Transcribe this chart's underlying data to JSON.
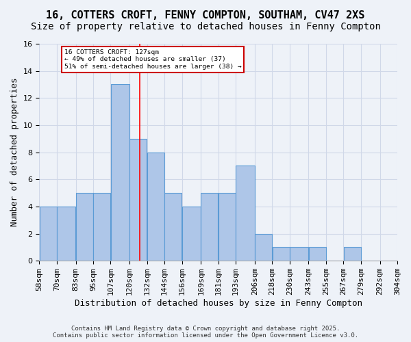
{
  "title_line1": "16, COTTERS CROFT, FENNY COMPTON, SOUTHAM, CV47 2XS",
  "title_line2": "Size of property relative to detached houses in Fenny Compton",
  "xlabel": "Distribution of detached houses by size in Fenny Compton",
  "ylabel": "Number of detached properties",
  "footer": "Contains HM Land Registry data © Crown copyright and database right 2025.\nContains public sector information licensed under the Open Government Licence v3.0.",
  "bin_labels": [
    "58sqm",
    "70sqm",
    "83sqm",
    "95sqm",
    "107sqm",
    "120sqm",
    "132sqm",
    "144sqm",
    "156sqm",
    "169sqm",
    "181sqm",
    "193sqm",
    "206sqm",
    "218sqm",
    "230sqm",
    "243sqm",
    "255sqm",
    "267sqm",
    "279sqm",
    "292sqm",
    "304sqm"
  ],
  "bar_values": [
    4,
    4,
    5,
    5,
    13,
    9,
    8,
    5,
    4,
    5,
    5,
    7,
    2,
    1,
    1,
    1,
    0,
    1,
    0,
    0
  ],
  "bar_color": "#aec6e8",
  "bar_edge_color": "#5b9bd5",
  "grid_color": "#d0d8e8",
  "background_color": "#eef2f8",
  "annotation_text": "16 COTTERS CROFT: 127sqm\n← 49% of detached houses are smaller (37)\n51% of semi-detached houses are larger (38) →",
  "annotation_box_color": "#ffffff",
  "annotation_box_edge_color": "#cc0000",
  "redline_x": 127,
  "bin_edges_sqm": [
    58,
    70,
    83,
    95,
    107,
    120,
    132,
    144,
    156,
    169,
    181,
    193,
    206,
    218,
    230,
    243,
    255,
    267,
    279,
    292,
    304
  ],
  "ylim": [
    0,
    16
  ],
  "yticks": [
    0,
    2,
    4,
    6,
    8,
    10,
    12,
    14,
    16
  ],
  "title_fontsize": 11,
  "subtitle_fontsize": 10,
  "label_fontsize": 9,
  "tick_fontsize": 8
}
